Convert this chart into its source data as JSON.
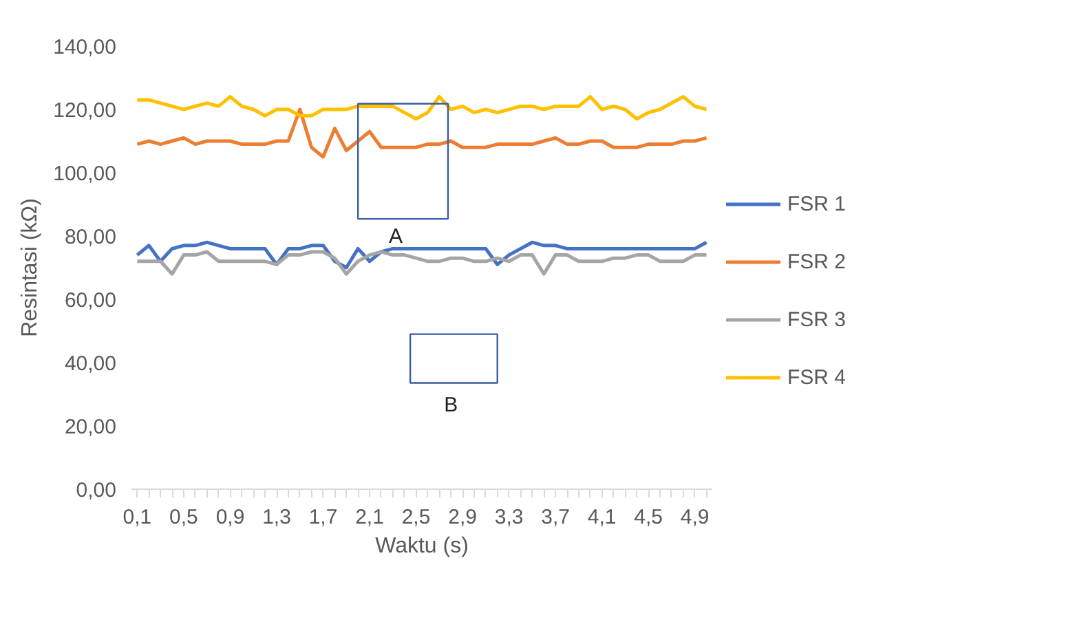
{
  "chart_data": {
    "type": "line",
    "xlabel": "Waktu (s)",
    "ylabel": "Resintasi (kΩ)",
    "x": [
      0.1,
      0.2,
      0.3,
      0.4,
      0.5,
      0.6,
      0.7,
      0.8,
      0.9,
      1.0,
      1.1,
      1.2,
      1.3,
      1.4,
      1.5,
      1.6,
      1.7,
      1.8,
      1.9,
      2.0,
      2.1,
      2.2,
      2.3,
      2.4,
      2.5,
      2.6,
      2.7,
      2.8,
      2.9,
      3.0,
      3.1,
      3.2,
      3.3,
      3.4,
      3.5,
      3.6,
      3.7,
      3.8,
      3.9,
      4.0,
      4.1,
      4.2,
      4.3,
      4.4,
      4.5,
      4.6,
      4.7,
      4.8,
      4.9,
      5.0
    ],
    "series": [
      {
        "name": "FSR 1",
        "color": "#4472c4",
        "values": [
          74,
          77,
          72,
          76,
          77,
          77,
          78,
          77,
          76,
          76,
          76,
          76,
          71,
          76,
          76,
          77,
          77,
          72,
          70,
          76,
          72,
          75,
          76,
          76,
          76,
          76,
          76,
          76,
          76,
          76,
          76,
          71,
          74,
          76,
          78,
          77,
          77,
          76,
          76,
          76,
          76,
          76,
          76,
          76,
          76,
          76,
          76,
          76,
          76,
          78
        ]
      },
      {
        "name": "FSR 2",
        "color": "#ed7d31",
        "values": [
          109,
          110,
          109,
          110,
          111,
          109,
          110,
          110,
          110,
          109,
          109,
          109,
          110,
          110,
          120,
          108,
          105,
          114,
          107,
          110,
          113,
          108,
          108,
          108,
          108,
          109,
          109,
          110,
          108,
          108,
          108,
          109,
          109,
          109,
          109,
          110,
          111,
          109,
          109,
          110,
          110,
          108,
          108,
          108,
          109,
          109,
          109,
          110,
          110,
          111
        ]
      },
      {
        "name": "FSR 3",
        "color": "#a5a5a5",
        "values": [
          72,
          72,
          72,
          68,
          74,
          74,
          75,
          72,
          72,
          72,
          72,
          72,
          71,
          74,
          74,
          75,
          75,
          73,
          68,
          72,
          74,
          75,
          74,
          74,
          73,
          72,
          72,
          73,
          73,
          72,
          72,
          73,
          72,
          74,
          74,
          68,
          74,
          74,
          72,
          72,
          72,
          73,
          73,
          74,
          74,
          72,
          72,
          72,
          74,
          74
        ]
      },
      {
        "name": "FSR 4",
        "color": "#ffc000",
        "values": [
          123,
          123,
          122,
          121,
          120,
          121,
          122,
          121,
          124,
          121,
          120,
          118,
          120,
          120,
          118,
          118,
          120,
          120,
          120,
          121,
          121,
          121,
          121,
          119,
          117,
          119,
          124,
          120,
          121,
          119,
          120,
          119,
          120,
          121,
          121,
          120,
          121,
          121,
          121,
          124,
          120,
          121,
          120,
          117,
          119,
          120,
          122,
          124,
          121,
          120
        ]
      }
    ],
    "ylim": [
      0,
      140
    ],
    "yticks": [
      {
        "value": 0,
        "label": "0,00"
      },
      {
        "value": 20,
        "label": "20,00"
      },
      {
        "value": 40,
        "label": "40,00"
      },
      {
        "value": 60,
        "label": "60,00"
      },
      {
        "value": 80,
        "label": "80,00"
      },
      {
        "value": 100,
        "label": "100,00"
      },
      {
        "value": 120,
        "label": "120,00"
      },
      {
        "value": 140,
        "label": "140,00"
      }
    ],
    "xlim": [
      0.05,
      5.05
    ],
    "xticks": [
      {
        "value": 0.1,
        "label": "0,1"
      },
      {
        "value": 0.2,
        "label": null
      },
      {
        "value": 0.3,
        "label": null
      },
      {
        "value": 0.4,
        "label": null
      },
      {
        "value": 0.5,
        "label": "0,5"
      },
      {
        "value": 0.6,
        "label": null
      },
      {
        "value": 0.7,
        "label": null
      },
      {
        "value": 0.8,
        "label": null
      },
      {
        "value": 0.9,
        "label": "0,9"
      },
      {
        "value": 1.0,
        "label": null
      },
      {
        "value": 1.1,
        "label": null
      },
      {
        "value": 1.2,
        "label": null
      },
      {
        "value": 1.3,
        "label": "1,3"
      },
      {
        "value": 1.4,
        "label": null
      },
      {
        "value": 1.5,
        "label": null
      },
      {
        "value": 1.6,
        "label": null
      },
      {
        "value": 1.7,
        "label": "1,7"
      },
      {
        "value": 1.8,
        "label": null
      },
      {
        "value": 1.9,
        "label": null
      },
      {
        "value": 2.0,
        "label": null
      },
      {
        "value": 2.1,
        "label": "2,1"
      },
      {
        "value": 2.2,
        "label": null
      },
      {
        "value": 2.3,
        "label": null
      },
      {
        "value": 2.4,
        "label": null
      },
      {
        "value": 2.5,
        "label": "2,5"
      },
      {
        "value": 2.6,
        "label": null
      },
      {
        "value": 2.7,
        "label": null
      },
      {
        "value": 2.8,
        "label": null
      },
      {
        "value": 2.9,
        "label": "2,9"
      },
      {
        "value": 3.0,
        "label": null
      },
      {
        "value": 3.1,
        "label": null
      },
      {
        "value": 3.2,
        "label": null
      },
      {
        "value": 3.3,
        "label": "3,3"
      },
      {
        "value": 3.4,
        "label": null
      },
      {
        "value": 3.5,
        "label": null
      },
      {
        "value": 3.6,
        "label": null
      },
      {
        "value": 3.7,
        "label": "3,7"
      },
      {
        "value": 3.8,
        "label": null
      },
      {
        "value": 3.9,
        "label": null
      },
      {
        "value": 4.0,
        "label": null
      },
      {
        "value": 4.1,
        "label": "4,1"
      },
      {
        "value": 4.2,
        "label": null
      },
      {
        "value": 4.3,
        "label": null
      },
      {
        "value": 4.4,
        "label": null
      },
      {
        "value": 4.5,
        "label": "4,5"
      },
      {
        "value": 4.6,
        "label": null
      },
      {
        "value": 4.7,
        "label": null
      },
      {
        "value": 4.8,
        "label": null
      },
      {
        "value": 4.9,
        "label": "4,9"
      },
      {
        "value": 5.0,
        "label": null
      }
    ],
    "annotations": [
      "A",
      "B"
    ],
    "legend": "right",
    "grid": false,
    "marker": "none",
    "line_style": "solid"
  }
}
